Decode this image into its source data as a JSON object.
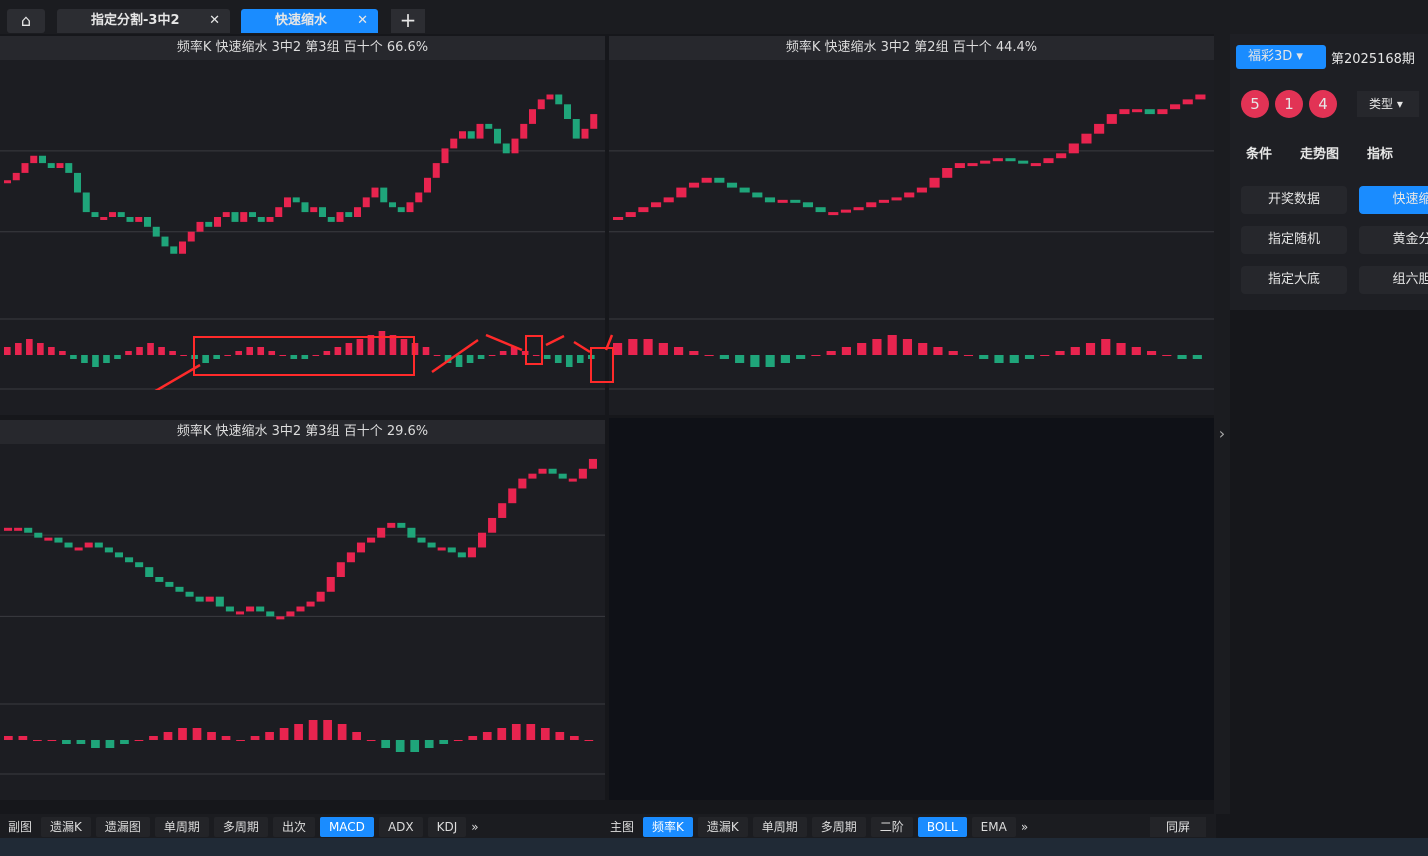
{
  "tabs": [
    "指定分割-3中2",
    "快速缩水"
  ],
  "active_tab": 1,
  "panels": [
    {
      "title": "频率K  快速缩水  3中2 第3组  百十个  66.6%",
      "kline": [
        55,
        58,
        62,
        65,
        62,
        60,
        62,
        58,
        50,
        42,
        40,
        40,
        42,
        40,
        38,
        40,
        36,
        32,
        28,
        25,
        30,
        34,
        38,
        36,
        40,
        42,
        38,
        42,
        40,
        38,
        40,
        44,
        48,
        46,
        42,
        44,
        40,
        38,
        42,
        40,
        44,
        48,
        52,
        46,
        44,
        42,
        46,
        50,
        56,
        62,
        68,
        72,
        75,
        72,
        78,
        76,
        70,
        66,
        72,
        78,
        84,
        88,
        90,
        86,
        80,
        72,
        76,
        82
      ],
      "macd": [
        2,
        3,
        4,
        3,
        2,
        1,
        -1,
        -2,
        -3,
        -2,
        -1,
        1,
        2,
        3,
        2,
        1,
        0,
        -1,
        -2,
        -1,
        0,
        1,
        2,
        2,
        1,
        0,
        -1,
        -1,
        0,
        1,
        2,
        3,
        4,
        5,
        6,
        5,
        4,
        3,
        2,
        0,
        -2,
        -3,
        -2,
        -1,
        0,
        1,
        2,
        1,
        0,
        -1,
        -2,
        -3,
        -2,
        -1
      ]
    },
    {
      "title": "频率K  快速缩水  3中2 第2组  百十个  44.4%",
      "kline": [
        40,
        42,
        44,
        46,
        48,
        52,
        54,
        56,
        54,
        52,
        50,
        48,
        46,
        47,
        46,
        44,
        42,
        42,
        43,
        44,
        46,
        47,
        48,
        50,
        52,
        56,
        60,
        62,
        62,
        63,
        64,
        63,
        62,
        62,
        64,
        66,
        70,
        74,
        78,
        82,
        84,
        84,
        82,
        84,
        86,
        88,
        90
      ],
      "macd": [
        3,
        4,
        4,
        3,
        2,
        1,
        0,
        -1,
        -2,
        -3,
        -3,
        -2,
        -1,
        0,
        1,
        2,
        3,
        4,
        5,
        4,
        3,
        2,
        1,
        0,
        -1,
        -2,
        -2,
        -1,
        0,
        1,
        2,
        3,
        4,
        3,
        2,
        1,
        0,
        -1,
        -1
      ]
    },
    {
      "title": "频率K  快速缩水  3中2 第3组  百十个  29.6%",
      "kline": [
        70,
        70,
        68,
        66,
        66,
        64,
        62,
        62,
        64,
        62,
        60,
        58,
        56,
        54,
        50,
        48,
        46,
        44,
        42,
        40,
        42,
        38,
        36,
        36,
        38,
        36,
        34,
        34,
        36,
        38,
        40,
        44,
        50,
        56,
        60,
        64,
        66,
        70,
        72,
        70,
        66,
        64,
        62,
        62,
        60,
        58,
        62,
        68,
        74,
        80,
        86,
        90,
        92,
        94,
        92,
        90,
        90,
        94,
        98
      ],
      "macd": [
        1,
        1,
        0,
        0,
        -1,
        -1,
        -2,
        -2,
        -1,
        0,
        1,
        2,
        3,
        3,
        2,
        1,
        0,
        1,
        2,
        3,
        4,
        5,
        5,
        4,
        2,
        0,
        -2,
        -3,
        -3,
        -2,
        -1,
        0,
        1,
        2,
        3,
        4,
        4,
        3,
        2,
        1,
        0
      ]
    }
  ],
  "sidebar": {
    "lottery": "福彩3D",
    "issue": "第2025168期",
    "balls": [
      "5",
      "1",
      "4"
    ],
    "type_select": "类型",
    "tabs": [
      "条件",
      "走势图",
      "指标"
    ],
    "buttons": [
      "开奖数据",
      "快速缩",
      "指定随机",
      "黄金分",
      "指定大底",
      "组六胆"
    ],
    "active_button": 1
  },
  "toolbar_left": {
    "label": "副图",
    "buttons": [
      "遗漏K",
      "遗漏图",
      "单周期",
      "多周期",
      "出次",
      "MACD",
      "ADX",
      "KDJ"
    ],
    "active": [
      5
    ]
  },
  "toolbar_right": {
    "label": "主图",
    "buttons": [
      "频率K",
      "遗漏K",
      "单周期",
      "多周期",
      "二阶",
      "BOLL",
      "EMA"
    ],
    "active": [
      0,
      5
    ],
    "same_screen": "同屏"
  }
}
